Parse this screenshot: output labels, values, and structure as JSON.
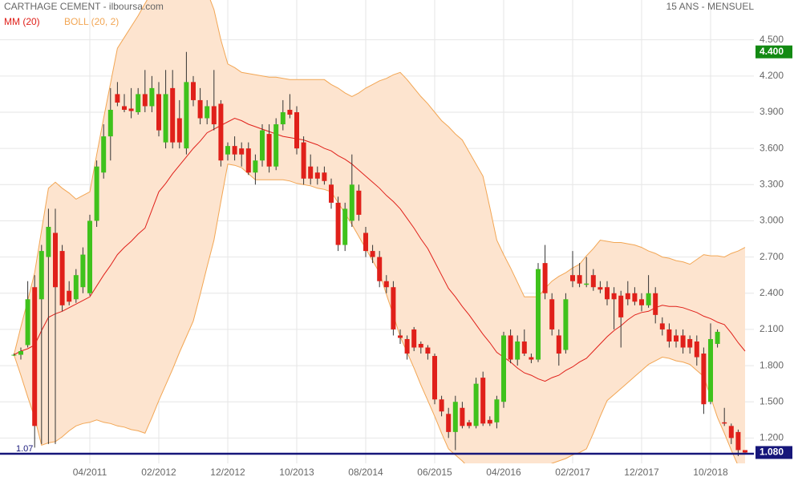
{
  "chart_data": {
    "type": "candlestick",
    "title": "CARTHAGE CEMENT - ilboursa.com",
    "subtitle": "15 ANS - MENSUEL",
    "categories": [
      null,
      null,
      null,
      null,
      null,
      null,
      null,
      null,
      null,
      null,
      null,
      "04/2011",
      null,
      null,
      null,
      null,
      null,
      null,
      null,
      null,
      null,
      "02/2012",
      null,
      null,
      null,
      null,
      null,
      null,
      null,
      null,
      null,
      "12/2012",
      null,
      null,
      null,
      null,
      null,
      null,
      null,
      null,
      null,
      "10/2013",
      null,
      null,
      null,
      null,
      null,
      null,
      null,
      null,
      null,
      "08/2014",
      null,
      null,
      null,
      null,
      null,
      null,
      null,
      null,
      null,
      "06/2015",
      null,
      null,
      null,
      null,
      null,
      null,
      null,
      null,
      null,
      "04/2016",
      null,
      null,
      null,
      null,
      null,
      null,
      null,
      null,
      null,
      "02/2017",
      null,
      null,
      null,
      null,
      null,
      null,
      null,
      null,
      null,
      "12/2017",
      null,
      null,
      null,
      null,
      null,
      null,
      null,
      null,
      null,
      "10/2018",
      null,
      null,
      null,
      null,
      null
    ],
    "open": [
      1.89,
      1.89,
      1.97,
      2.45,
      2.35,
      2.7,
      2.9,
      2.75,
      2.42,
      2.35,
      2.45,
      2.4,
      3.0,
      3.4,
      3.7,
      4.05,
      3.95,
      3.93,
      3.9,
      4.05,
      3.95,
      4.05,
      3.65,
      4.1,
      3.85,
      3.6,
      4.15,
      4.0,
      3.85,
      3.95,
      3.97,
      3.55,
      3.62,
      3.6,
      3.6,
      3.4,
      3.5,
      3.72,
      3.45,
      3.8,
      3.92,
      3.9,
      3.65,
      3.45,
      3.4,
      3.4,
      3.3,
      3.15,
      2.8,
      3.0,
      3.25,
      2.9,
      2.75,
      2.7,
      2.5,
      2.45,
      2.05,
      2.02,
      2.1,
      1.98,
      1.95,
      1.88,
      1.52,
      1.4,
      1.25,
      1.45,
      1.33,
      1.3,
      1.7,
      1.35,
      1.33,
      1.5,
      2.05,
      1.85,
      2.0,
      1.87,
      1.85,
      2.65,
      2.35,
      2.05,
      1.93,
      2.55,
      2.55,
      2.47,
      2.55,
      2.45,
      2.45,
      2.4,
      2.38,
      2.4,
      2.4,
      2.35,
      2.3,
      2.4,
      2.15,
      2.1,
      2.05,
      2.05,
      2.02,
      2.0,
      1.9,
      1.5,
      1.98,
      1.33,
      1.3,
      1.25,
      1.1
    ],
    "high": [
      1.9,
      1.95,
      2.5,
      2.55,
      2.8,
      3.1,
      3.1,
      2.8,
      2.5,
      2.6,
      2.78,
      3.05,
      3.5,
      3.8,
      4.1,
      4.15,
      4.05,
      4.1,
      4.1,
      4.25,
      4.2,
      4.15,
      4.25,
      4.25,
      4.0,
      4.4,
      4.2,
      4.1,
      4.0,
      4.25,
      4.0,
      3.65,
      3.7,
      3.65,
      3.65,
      3.55,
      3.8,
      3.8,
      3.85,
      4.0,
      4.05,
      3.95,
      3.7,
      3.55,
      3.45,
      3.45,
      3.35,
      3.2,
      3.15,
      3.55,
      3.3,
      2.95,
      2.8,
      2.75,
      2.55,
      2.5,
      2.1,
      2.05,
      2.12,
      2.0,
      1.97,
      1.9,
      1.55,
      1.45,
      1.55,
      1.5,
      1.35,
      1.7,
      1.75,
      1.38,
      1.55,
      2.08,
      2.1,
      2.05,
      2.1,
      1.9,
      2.65,
      2.8,
      2.4,
      2.1,
      2.4,
      2.75,
      2.65,
      2.7,
      2.6,
      2.5,
      2.5,
      2.45,
      2.42,
      2.5,
      2.45,
      2.4,
      2.55,
      2.45,
      2.2,
      2.15,
      2.1,
      2.1,
      2.05,
      2.05,
      1.95,
      2.15,
      2.1,
      1.45,
      1.32,
      1.27,
      1.1
    ],
    "low": [
      1.88,
      1.85,
      1.95,
      1.12,
      1.15,
      1.15,
      1.15,
      2.25,
      2.3,
      2.32,
      2.4,
      2.38,
      2.95,
      3.35,
      3.5,
      3.95,
      3.9,
      3.85,
      3.88,
      3.9,
      3.9,
      3.7,
      3.6,
      3.6,
      3.6,
      3.55,
      3.95,
      3.8,
      3.8,
      3.75,
      3.45,
      3.5,
      3.5,
      3.45,
      3.38,
      3.3,
      3.45,
      3.4,
      3.42,
      3.75,
      3.85,
      3.55,
      3.3,
      3.3,
      3.3,
      3.3,
      3.1,
      2.75,
      2.75,
      2.95,
      3.0,
      2.7,
      2.65,
      2.45,
      2.4,
      2.05,
      1.98,
      1.85,
      1.92,
      1.9,
      1.85,
      1.48,
      1.38,
      1.2,
      1.1,
      1.28,
      1.28,
      1.28,
      1.3,
      1.3,
      1.28,
      1.45,
      1.82,
      1.8,
      1.88,
      1.82,
      1.83,
      2.35,
      2.05,
      1.8,
      1.9,
      2.45,
      2.45,
      2.45,
      2.42,
      2.4,
      2.3,
      2.1,
      1.95,
      2.3,
      2.3,
      2.25,
      2.28,
      2.15,
      2.05,
      1.95,
      1.95,
      1.9,
      1.9,
      1.8,
      1.4,
      1.48,
      1.95,
      1.3,
      1.15,
      1.05,
      1.07
    ],
    "close": [
      1.89,
      1.92,
      2.35,
      1.3,
      2.75,
      2.95,
      2.45,
      2.3,
      2.33,
      2.55,
      2.72,
      3.0,
      3.45,
      3.7,
      3.92,
      3.98,
      3.92,
      3.91,
      4.05,
      3.95,
      4.1,
      3.75,
      4.05,
      3.65,
      3.65,
      4.15,
      4.0,
      3.85,
      3.95,
      3.8,
      3.5,
      3.62,
      3.55,
      3.55,
      3.4,
      3.5,
      3.75,
      3.45,
      3.8,
      3.9,
      3.88,
      3.6,
      3.35,
      3.35,
      3.35,
      3.33,
      3.15,
      2.8,
      3.1,
      3.3,
      3.05,
      2.75,
      2.7,
      2.5,
      2.45,
      2.1,
      2.03,
      1.9,
      1.95,
      1.95,
      1.9,
      1.52,
      1.42,
      1.25,
      1.5,
      1.3,
      1.3,
      1.65,
      1.32,
      1.32,
      1.52,
      2.05,
      1.85,
      2.0,
      1.9,
      1.85,
      2.6,
      2.4,
      2.1,
      1.9,
      2.35,
      2.5,
      2.48,
      2.48,
      2.45,
      2.43,
      2.35,
      2.35,
      2.2,
      2.35,
      2.33,
      2.3,
      2.4,
      2.22,
      2.1,
      2.0,
      2.0,
      1.95,
      1.95,
      1.87,
      1.48,
      2.02,
      2.08,
      1.32,
      1.2,
      1.1,
      1.08
    ],
    "up_color": "#3fc21c",
    "down_color": "#e0201a",
    "moving_average": {
      "name": "MM (20)",
      "color": "#e0201a",
      "values": [
        1.89,
        1.92,
        1.94,
        1.97,
        2.09,
        2.2,
        2.23,
        2.25,
        2.28,
        2.31,
        2.34,
        2.37,
        2.46,
        2.55,
        2.63,
        2.72,
        2.78,
        2.83,
        2.89,
        2.94,
        3.09,
        3.24,
        3.31,
        3.39,
        3.46,
        3.53,
        3.6,
        3.66,
        3.73,
        3.76,
        3.79,
        3.82,
        3.85,
        3.83,
        3.8,
        3.78,
        3.76,
        3.74,
        3.72,
        3.7,
        3.69,
        3.68,
        3.67,
        3.65,
        3.63,
        3.6,
        3.58,
        3.54,
        3.51,
        3.47,
        3.42,
        3.37,
        3.32,
        3.27,
        3.21,
        3.16,
        3.1,
        3.02,
        2.94,
        2.85,
        2.77,
        2.66,
        2.55,
        2.44,
        2.37,
        2.29,
        2.22,
        2.14,
        2.06,
        1.99,
        1.91,
        1.87,
        1.83,
        1.78,
        1.74,
        1.72,
        1.69,
        1.67,
        1.7,
        1.72,
        1.76,
        1.79,
        1.83,
        1.86,
        1.92,
        1.98,
        2.04,
        2.09,
        2.13,
        2.18,
        2.22,
        2.24,
        2.25,
        2.28,
        2.3,
        2.29,
        2.29,
        2.28,
        2.26,
        2.24,
        2.21,
        2.19,
        2.16,
        2.14,
        2.07,
        1.99,
        1.92
      ]
    },
    "bollinger": {
      "name": "BOLL (20, 2)",
      "color": "#f2a654",
      "fill": "#fde4cf",
      "upper": [
        1.89,
        2.12,
        2.34,
        2.57,
        2.92,
        3.27,
        3.32,
        3.27,
        3.23,
        3.18,
        3.21,
        3.24,
        3.55,
        3.85,
        4.14,
        4.43,
        4.52,
        4.61,
        4.7,
        4.8,
        4.9,
        4.9,
        4.9,
        4.9,
        4.9,
        4.9,
        4.9,
        4.9,
        4.9,
        4.75,
        4.5,
        4.3,
        4.27,
        4.23,
        4.22,
        4.21,
        4.2,
        4.19,
        4.19,
        4.18,
        4.17,
        4.17,
        4.17,
        4.17,
        4.17,
        4.17,
        4.13,
        4.1,
        4.06,
        4.03,
        4.06,
        4.1,
        4.13,
        4.16,
        4.18,
        4.21,
        4.23,
        4.17,
        4.1,
        4.03,
        3.97,
        3.9,
        3.83,
        3.78,
        3.72,
        3.67,
        3.57,
        3.47,
        3.37,
        3.11,
        2.84,
        2.72,
        2.61,
        2.49,
        2.37,
        2.37,
        2.37,
        2.44,
        2.5,
        2.54,
        2.57,
        2.61,
        2.64,
        2.71,
        2.77,
        2.84,
        2.83,
        2.82,
        2.82,
        2.81,
        2.8,
        2.78,
        2.75,
        2.73,
        2.7,
        2.69,
        2.67,
        2.66,
        2.64,
        2.68,
        2.72,
        2.71,
        2.71,
        2.7,
        2.73,
        2.75,
        2.78
      ],
      "lower": [
        1.89,
        1.72,
        1.54,
        1.37,
        1.14,
        1.16,
        1.17,
        1.21,
        1.26,
        1.3,
        1.32,
        1.33,
        1.35,
        1.33,
        1.32,
        1.3,
        1.29,
        1.27,
        1.26,
        1.24,
        1.37,
        1.51,
        1.64,
        1.77,
        1.91,
        2.04,
        2.17,
        2.39,
        2.62,
        2.84,
        3.16,
        3.47,
        3.46,
        3.44,
        3.39,
        3.34,
        3.34,
        3.34,
        3.34,
        3.34,
        3.33,
        3.31,
        3.3,
        3.29,
        3.27,
        3.26,
        3.24,
        3.15,
        3.06,
        2.97,
        2.87,
        2.77,
        2.67,
        2.57,
        2.39,
        2.22,
        2.04,
        1.91,
        1.78,
        1.64,
        1.51,
        1.38,
        1.24,
        1.11,
        1.06,
        1.01,
        0.95,
        0.9,
        0.9,
        0.9,
        0.9,
        0.91,
        0.91,
        0.92,
        0.93,
        0.94,
        0.96,
        0.97,
        0.99,
        1.01,
        1.03,
        1.06,
        1.08,
        1.11,
        1.24,
        1.38,
        1.51,
        1.56,
        1.61,
        1.66,
        1.71,
        1.76,
        1.81,
        1.84,
        1.87,
        1.86,
        1.84,
        1.83,
        1.81,
        1.76,
        1.71,
        1.54,
        1.37,
        1.24,
        1.1,
        0.97,
        0.9
      ]
    },
    "ylim": [
      0.99,
      4.83
    ],
    "yticks": [
      {
        "value": 1.2,
        "label": "1.200"
      },
      {
        "value": 1.5,
        "label": "1.500"
      },
      {
        "value": 1.8,
        "label": "1.800"
      },
      {
        "value": 2.1,
        "label": "2.100"
      },
      {
        "value": 2.4,
        "label": "2.400"
      },
      {
        "value": 2.7,
        "label": "2.700"
      },
      {
        "value": 3.0,
        "label": "3.000"
      },
      {
        "value": 3.3,
        "label": "3.300"
      },
      {
        "value": 3.6,
        "label": "3.600"
      },
      {
        "value": 3.9,
        "label": "3.900"
      },
      {
        "value": 4.2,
        "label": "4.200"
      },
      {
        "value": 4.5,
        "label": "4.500"
      }
    ],
    "grid": true,
    "price_markers": [
      {
        "value": 4.4,
        "label": "4.400",
        "color": "#138a13"
      },
      {
        "value": 1.08,
        "label": "1.080",
        "color": "#16167a"
      }
    ],
    "reference_line": {
      "value": 1.07,
      "label": "1.07",
      "color": "#16167a"
    }
  }
}
